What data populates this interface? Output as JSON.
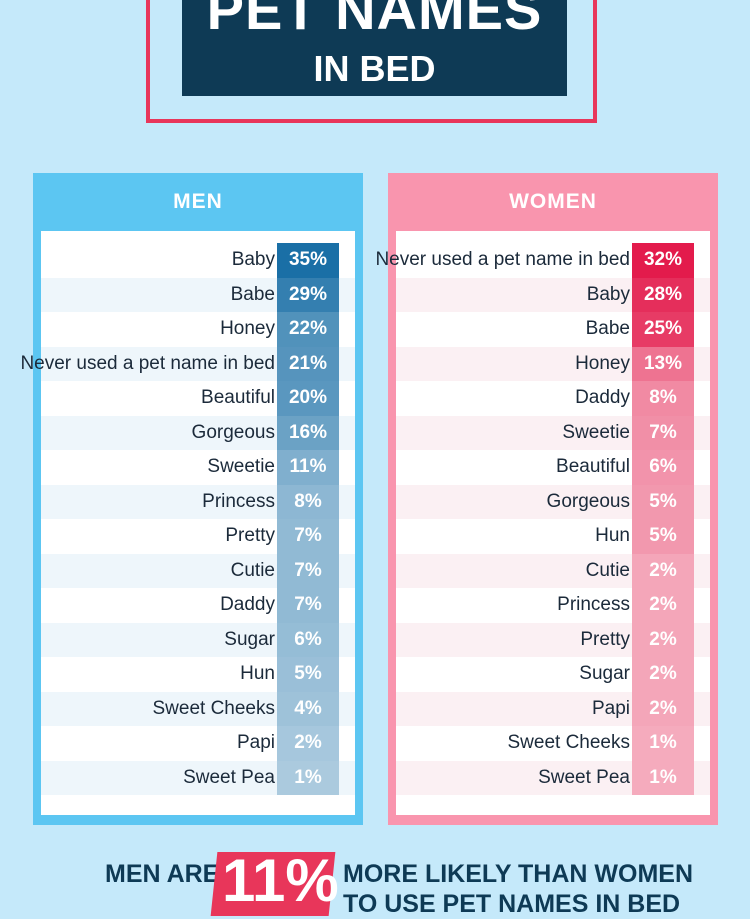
{
  "header": {
    "title": "PET NAMES",
    "subtitle": "IN BED"
  },
  "chart_data": {
    "type": "table",
    "title": "PET NAMES IN BED",
    "series": [
      {
        "name": "MEN",
        "color": "#1a6fa6",
        "rows": [
          {
            "label": "Baby",
            "value": "35%",
            "pct": 35
          },
          {
            "label": "Babe",
            "value": "29%",
            "pct": 29
          },
          {
            "label": "Honey",
            "value": "22%",
            "pct": 22
          },
          {
            "label": "Never used a pet name in bed",
            "value": "21%",
            "pct": 21
          },
          {
            "label": "Beautiful",
            "value": "20%",
            "pct": 20
          },
          {
            "label": "Gorgeous",
            "value": "16%",
            "pct": 16
          },
          {
            "label": "Sweetie",
            "value": "11%",
            "pct": 11
          },
          {
            "label": "Princess",
            "value": "8%",
            "pct": 8
          },
          {
            "label": "Pretty",
            "value": "7%",
            "pct": 7
          },
          {
            "label": "Cutie",
            "value": "7%",
            "pct": 7
          },
          {
            "label": "Daddy",
            "value": "7%",
            "pct": 7
          },
          {
            "label": "Sugar",
            "value": "6%",
            "pct": 6
          },
          {
            "label": "Hun",
            "value": "5%",
            "pct": 5
          },
          {
            "label": "Sweet Cheeks",
            "value": "4%",
            "pct": 4
          },
          {
            "label": "Papi",
            "value": "2%",
            "pct": 2
          },
          {
            "label": "Sweet Pea",
            "value": "1%",
            "pct": 1
          }
        ]
      },
      {
        "name": "WOMEN",
        "color": "#e31b4c",
        "rows": [
          {
            "label": "Never used a pet name in bed",
            "value": "32%",
            "pct": 32
          },
          {
            "label": "Baby",
            "value": "28%",
            "pct": 28
          },
          {
            "label": "Babe",
            "value": "25%",
            "pct": 25
          },
          {
            "label": "Honey",
            "value": "13%",
            "pct": 13
          },
          {
            "label": "Daddy",
            "value": "8%",
            "pct": 8
          },
          {
            "label": "Sweetie",
            "value": "7%",
            "pct": 7
          },
          {
            "label": "Beautiful",
            "value": "6%",
            "pct": 6
          },
          {
            "label": "Gorgeous",
            "value": "5%",
            "pct": 5
          },
          {
            "label": "Hun",
            "value": "5%",
            "pct": 5
          },
          {
            "label": "Cutie",
            "value": "2%",
            "pct": 2
          },
          {
            "label": "Princess",
            "value": "2%",
            "pct": 2
          },
          {
            "label": "Pretty",
            "value": "2%",
            "pct": 2
          },
          {
            "label": "Sugar",
            "value": "2%",
            "pct": 2
          },
          {
            "label": "Papi",
            "value": "2%",
            "pct": 2
          },
          {
            "label": "Sweet Cheeks",
            "value": "1%",
            "pct": 1
          },
          {
            "label": "Sweet Pea",
            "value": "1%",
            "pct": 1
          }
        ]
      }
    ]
  },
  "footer": {
    "left": "MEN ARE",
    "badge": "11%",
    "right_line1": "MORE LIKELY THAN WOMEN",
    "right_line2": "TO USE PET NAMES IN BED"
  }
}
